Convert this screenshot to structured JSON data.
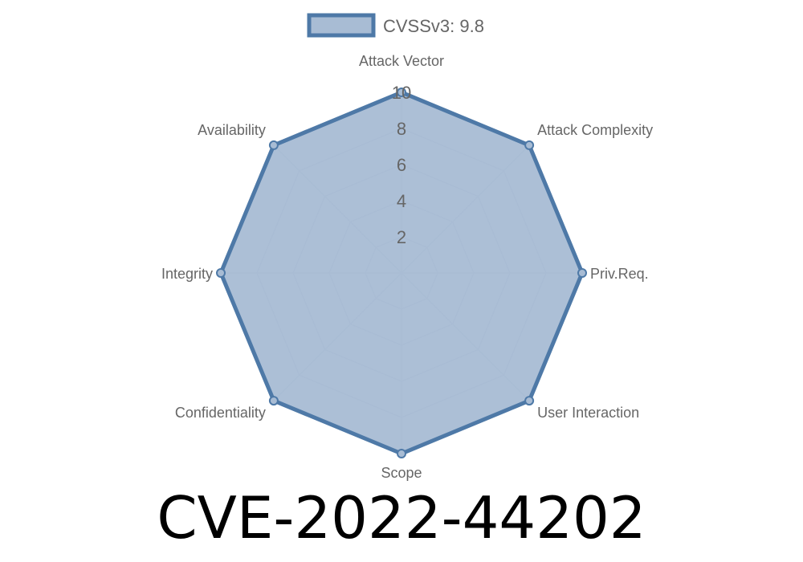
{
  "chart_data": {
    "type": "radar",
    "categories": [
      "Attack Vector",
      "Attack Complexity",
      "Priv.Req.",
      "User Interaction",
      "Scope",
      "Confidentiality",
      "Integrity",
      "Availability"
    ],
    "series": [
      {
        "name": "CVSSv3: 9.8",
        "values": [
          10,
          10,
          10,
          10,
          10,
          10,
          10,
          10
        ]
      }
    ],
    "rlim": [
      0,
      10
    ],
    "ticks": [
      "2",
      "4",
      "6",
      "8",
      "10"
    ],
    "legend": "top",
    "grid": true,
    "colors": {
      "line": "#4e79a7",
      "fill": "#a8bcd4",
      "grid": "#b8c4d2"
    }
  },
  "title": "CVE-2022-44202"
}
